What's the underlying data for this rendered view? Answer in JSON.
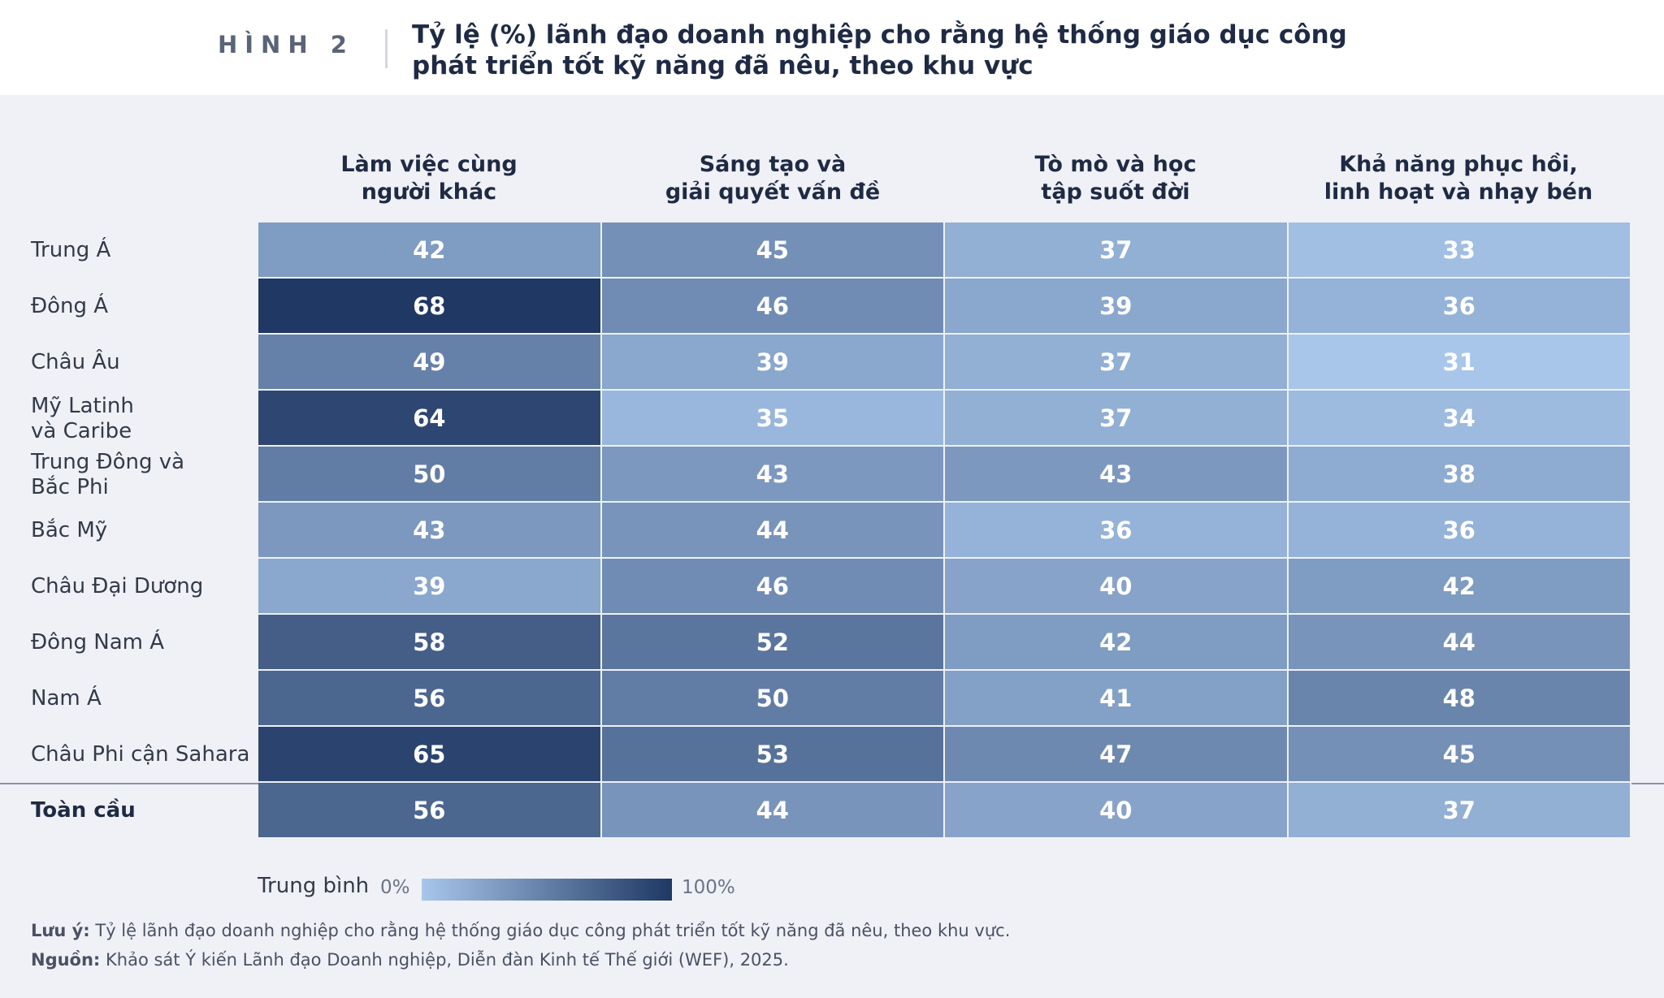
{
  "figure": {
    "label": "HÌNH 2",
    "title_line1": "Tỷ lệ (%) lãnh đạo doanh nghiệp cho rằng hệ thống giáo dục công",
    "title_line2": "phát triển tốt kỹ năng đã nêu, theo khu vực"
  },
  "chart_data": {
    "type": "heatmap",
    "columns": [
      {
        "line1": "Làm việc cùng",
        "line2": "người khác"
      },
      {
        "line1": "Sáng tạo và",
        "line2": "giải quyết vấn đề"
      },
      {
        "line1": "Tò mò và học",
        "line2": "tập suốt đời"
      },
      {
        "line1": "Khả năng phục hồi,",
        "line2": "linh hoạt và nhạy bén"
      }
    ],
    "rows": [
      {
        "line1": "Trung Á",
        "line2": "",
        "values": [
          42,
          45,
          37,
          33
        ]
      },
      {
        "line1": "Đông Á",
        "line2": "",
        "values": [
          68,
          46,
          39,
          36
        ]
      },
      {
        "line1": "Châu Âu",
        "line2": "",
        "values": [
          49,
          39,
          37,
          31
        ]
      },
      {
        "line1": "Mỹ Latinh",
        "line2": "và Caribe",
        "values": [
          64,
          35,
          37,
          34
        ]
      },
      {
        "line1": "Trung Đông và",
        "line2": "Bắc Phi",
        "values": [
          50,
          43,
          43,
          38
        ]
      },
      {
        "line1": "Bắc Mỹ",
        "line2": "",
        "values": [
          43,
          44,
          36,
          36
        ]
      },
      {
        "line1": "Châu Đại Dương",
        "line2": "",
        "values": [
          39,
          46,
          40,
          42
        ]
      },
      {
        "line1": "Đông Nam Á",
        "line2": "",
        "values": [
          58,
          52,
          42,
          44
        ]
      },
      {
        "line1": "Nam Á",
        "line2": "",
        "values": [
          56,
          50,
          41,
          48
        ]
      },
      {
        "line1": "Châu Phi cận Sahara",
        "line2": "",
        "values": [
          65,
          53,
          47,
          45
        ]
      }
    ],
    "total_row": {
      "label": "Toàn cầu",
      "values": [
        56,
        44,
        40,
        37
      ]
    },
    "color_scale": {
      "low_color": "#a8c6ea",
      "high_color": "#1f3864",
      "domain": [
        31,
        68
      ]
    },
    "legend": {
      "title": "Trung bình",
      "min_label": "0%",
      "max_label": "100%"
    }
  },
  "footnote": {
    "note_label": "Lưu ý:",
    "note_text": " Tỷ lệ lãnh đạo doanh nghiệp cho rằng hệ thống giáo dục công phát triển tốt kỹ năng đã nêu, theo khu vực.",
    "source_label": "Nguồn:",
    "source_text": " Khảo sát Ý kiến Lãnh đạo Doanh nghiệp, Diễn đàn Kinh tế Thế giới (WEF), 2025."
  }
}
